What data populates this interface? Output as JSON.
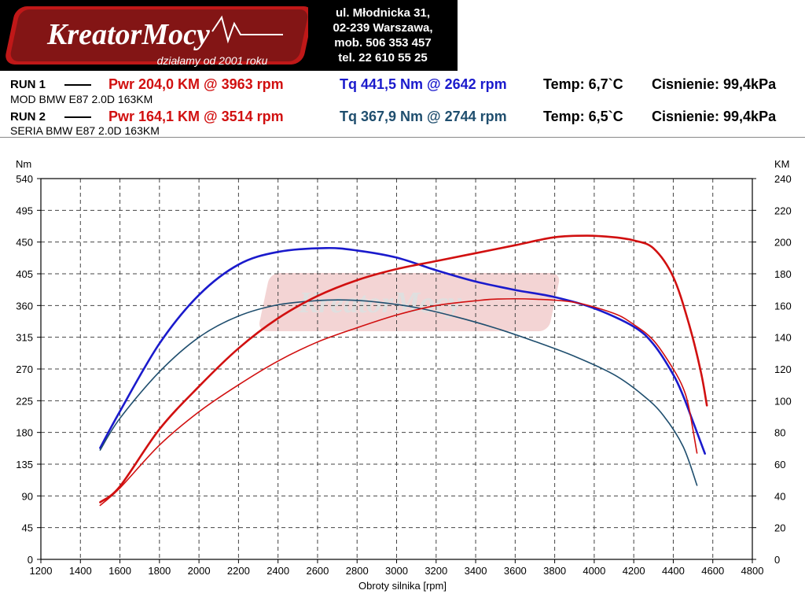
{
  "brand": {
    "logo_text": "KreatorMocy",
    "tagline": "działamy od 2001 roku"
  },
  "contact": {
    "lines": [
      "ul. Młodnicka 31,",
      "02-239  Warszawa,",
      "mob.  506 353 457",
      "tel.  22 610 55 25"
    ]
  },
  "runs": [
    {
      "label": "RUN 1",
      "pwr": "Pwr  204,0 KM @ 3963 rpm",
      "tq": "Tq 441,5 Nm @ 2642 rpm",
      "temp": "Temp: 6,7`C",
      "pressure": "Cisnienie: 99,4kPa",
      "description": "MOD BMW E87 2.0D 163KM"
    },
    {
      "label": "RUN 2",
      "pwr": "Pwr  164,1 KM @ 3514 rpm",
      "tq": "Tq 367,9 Nm @ 2744 rpm",
      "temp": "Temp: 6,5`C",
      "pressure": "Cisnienie: 99,4kPa",
      "description": "SERIA BMW E87 2.0D 163KM"
    }
  ],
  "chart_data": {
    "type": "line",
    "xlabel": "Obroty silnika [rpm]",
    "ylabel_left": "Nm",
    "ylabel_right": "KM",
    "xlim": [
      1200,
      4800
    ],
    "ylim_left": [
      0,
      540
    ],
    "ylim_right": [
      0,
      240
    ],
    "xticks": [
      1200,
      1400,
      1600,
      1800,
      2000,
      2200,
      2400,
      2600,
      2800,
      3000,
      3200,
      3400,
      3600,
      3800,
      4000,
      4200,
      4400,
      4600,
      4800
    ],
    "yticks_left": [
      0,
      45,
      90,
      135,
      180,
      225,
      270,
      315,
      360,
      405,
      450,
      495,
      540
    ],
    "yticks_right": [
      0,
      20,
      40,
      60,
      80,
      100,
      120,
      140,
      160,
      180,
      200,
      220,
      240
    ],
    "grid": true,
    "colors": {
      "torque_run1": "#1a1acc",
      "torque_run2": "#1f4e6e",
      "power_run1": "#d11010",
      "power_run2": "#d11010"
    },
    "series": [
      {
        "axis": "left",
        "x": [
          1500,
          1600,
          1800,
          2000,
          2200,
          2400,
          2642,
          2800,
          3000,
          3200,
          3400,
          3600,
          3800,
          4000,
          4200,
          4300,
          4400,
          4450,
          4500,
          4560
        ],
        "y": [
          158,
          210,
          306,
          375,
          418,
          436,
          441.5,
          438,
          428,
          410,
          394,
          382,
          372,
          356,
          330,
          305,
          262,
          232,
          195,
          150
        ]
      },
      {
        "axis": "left",
        "x": [
          1500,
          1600,
          1800,
          2000,
          2200,
          2400,
          2600,
          2744,
          2900,
          3100,
          3300,
          3500,
          3700,
          3900,
          4100,
          4250,
          4350,
          4450,
          4520
        ],
        "y": [
          155,
          200,
          266,
          315,
          345,
          361,
          367,
          367.9,
          365,
          357,
          344,
          328,
          309,
          288,
          262,
          232,
          204,
          160,
          105
        ]
      },
      {
        "axis": "right",
        "x": [
          1500,
          1600,
          1800,
          2000,
          2200,
          2400,
          2600,
          2800,
          3000,
          3200,
          3400,
          3600,
          3800,
          3963,
          4100,
          4200,
          4300,
          4400,
          4480,
          4540,
          4570
        ],
        "y": [
          36,
          46,
          82,
          109,
          133,
          152,
          166,
          176,
          183,
          188,
          193,
          198,
          203,
          204.0,
          203,
          201,
          196,
          178,
          148,
          118,
          97
        ]
      },
      {
        "axis": "right",
        "x": [
          1500,
          1600,
          1800,
          2000,
          2200,
          2400,
          2600,
          2800,
          3000,
          3200,
          3400,
          3514,
          3700,
          3900,
          4100,
          4200,
          4300,
          4400,
          4450,
          4480,
          4520
        ],
        "y": [
          34,
          45,
          72,
          93,
          110,
          125,
          137,
          146,
          154,
          160,
          163,
          164.1,
          164,
          162,
          155,
          148,
          138,
          120,
          108,
          95,
          67
        ]
      }
    ]
  }
}
